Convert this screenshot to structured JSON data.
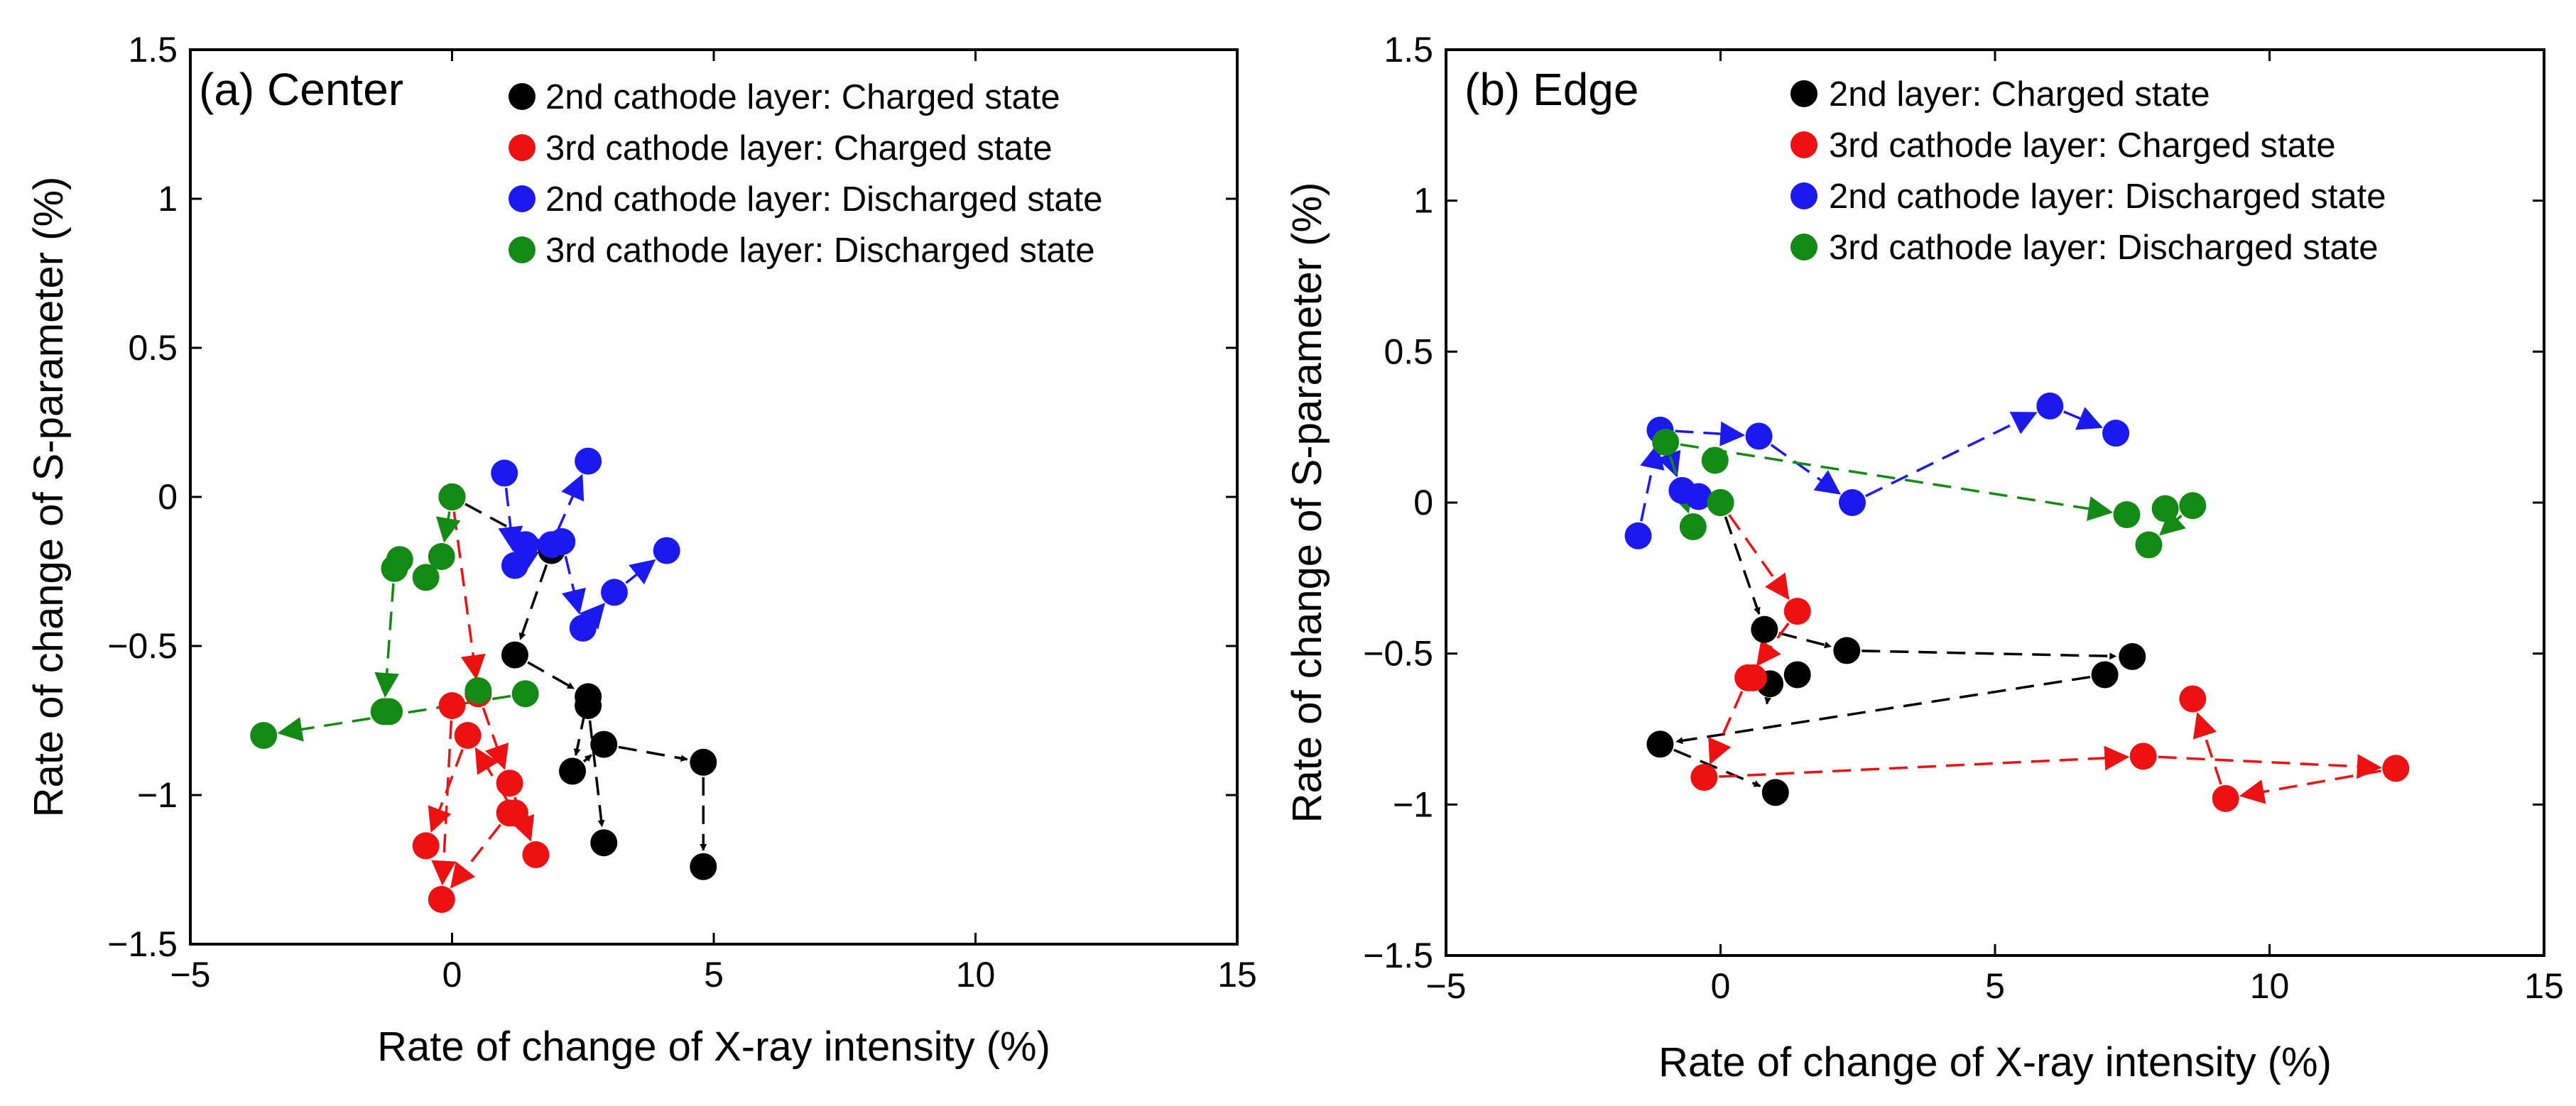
{
  "colors": {
    "black": "#000000",
    "red": "#ee1111",
    "blue": "#1a1aee",
    "green": "#138a13"
  },
  "chart_data": [
    {
      "type": "scatter",
      "title": "(a) Center",
      "xlabel": "Rate of change of X-ray intensity (%)",
      "ylabel": "Rate of change of S-parameter (%)",
      "xlim": [
        -5,
        15
      ],
      "ylim": [
        -1.5,
        1.5
      ],
      "xticks": [
        "−5",
        "0",
        "5",
        "10",
        "15"
      ],
      "yticks": [
        "1.5",
        "1",
        "0.5",
        "0",
        "−0.5",
        "−1",
        "−1.5"
      ],
      "legend_position": "top-right",
      "series": [
        {
          "name": "2nd cathode layer: Charged state",
          "color": "black",
          "x": [
            0,
            1.9,
            1.2,
            2.6,
            2.3,
            2.9,
            4.8,
            4.8,
            2.6,
            2.9
          ],
          "y": [
            0,
            -0.18,
            -0.53,
            -0.67,
            -0.92,
            -0.83,
            -0.89,
            -1.24,
            -0.7,
            -1.16
          ]
        },
        {
          "name": "3rd cathode layer: Charged state",
          "color": "red",
          "x": [
            0,
            0.5,
            1.1,
            1.6,
            1.2,
            0.3,
            -0.5,
            0,
            -0.2,
            1.1
          ],
          "y": [
            0,
            -0.66,
            -0.96,
            -1.2,
            -1.06,
            -0.8,
            -1.17,
            -0.7,
            -1.35,
            -1.06
          ]
        },
        {
          "name": "2nd cathode layer: Discharged state",
          "color": "blue",
          "x": [
            1,
            1.2,
            1.9,
            2.6,
            1.4,
            2.1,
            2.5,
            3.1,
            4.1
          ],
          "y": [
            0.08,
            -0.23,
            -0.16,
            0.12,
            -0.16,
            -0.15,
            -0.44,
            -0.32,
            -0.18
          ]
        },
        {
          "name": "3rd cathode layer: Discharged state",
          "color": "green",
          "x": [
            0,
            -0.2,
            -0.5,
            -1,
            -1.1,
            -1.3,
            -3.6,
            0.5,
            1.4,
            -1.2
          ],
          "y": [
            0,
            -0.2,
            -0.27,
            -0.21,
            -0.24,
            -0.72,
            -0.8,
            -0.65,
            -0.66,
            -0.72
          ]
        }
      ],
      "arrows": [
        {
          "color": "black",
          "path": [
            [
              0,
              0
            ],
            [
              1.9,
              -0.18
            ],
            [
              1.2,
              -0.53
            ],
            [
              2.6,
              -0.67
            ],
            [
              2.3,
              -0.92
            ],
            [
              2.9,
              -0.83
            ],
            [
              4.8,
              -0.89
            ],
            [
              4.8,
              -1.24
            ]
          ]
        },
        {
          "color": "black",
          "path": [
            [
              2.6,
              -0.7
            ],
            [
              2.9,
              -1.16
            ]
          ]
        },
        {
          "color": "red",
          "path": [
            [
              0,
              0
            ],
            [
              0.5,
              -0.66
            ],
            [
              1.1,
              -0.96
            ],
            [
              1.6,
              -1.2
            ]
          ]
        },
        {
          "color": "red",
          "path": [
            [
              1.2,
              -1.06
            ],
            [
              0.3,
              -0.8
            ],
            [
              -0.5,
              -1.17
            ]
          ]
        },
        {
          "color": "red",
          "path": [
            [
              0,
              -0.7
            ],
            [
              -0.2,
              -1.35
            ]
          ]
        },
        {
          "color": "red",
          "path": [
            [
              1.1,
              -1.06
            ],
            [
              -0.2,
              -1.35
            ]
          ]
        },
        {
          "color": "blue",
          "path": [
            [
              1,
              0.08
            ],
            [
              1.2,
              -0.23
            ],
            [
              1.9,
              -0.16
            ],
            [
              2.6,
              0.12
            ]
          ]
        },
        {
          "color": "blue",
          "path": [
            [
              1.4,
              -0.16
            ],
            [
              2.1,
              -0.15
            ],
            [
              2.5,
              -0.44
            ],
            [
              3.1,
              -0.32
            ],
            [
              4.1,
              -0.18
            ]
          ]
        },
        {
          "color": "green",
          "path": [
            [
              0,
              0
            ],
            [
              -0.2,
              -0.2
            ],
            [
              -0.5,
              -0.27
            ]
          ]
        },
        {
          "color": "green",
          "path": [
            [
              -1.1,
              -0.24
            ],
            [
              -1.3,
              -0.72
            ]
          ]
        },
        {
          "color": "green",
          "path": [
            [
              1.4,
              -0.66
            ],
            [
              -3.6,
              -0.8
            ]
          ]
        }
      ]
    },
    {
      "type": "scatter",
      "title": "(b) Edge",
      "xlabel": "Rate of change of X-ray intensity (%)",
      "ylabel": "Rate of change of S-parameter (%)",
      "xlim": [
        -5,
        15
      ],
      "ylim": [
        -1.5,
        1.5
      ],
      "xticks": [
        "−5",
        "0",
        "5",
        "10",
        "15"
      ],
      "yticks": [
        "1.5",
        "1",
        "0.5",
        "0",
        "−0.5",
        "−1",
        "−1.5"
      ],
      "legend_position": "top-right",
      "series": [
        {
          "name": "2nd layer: Charged state",
          "color": "black",
          "x": [
            0,
            0.8,
            1.4,
            2.3,
            7,
            7.5,
            0.9,
            -1.1,
            1
          ],
          "y": [
            0,
            -0.42,
            -0.57,
            -0.49,
            -0.57,
            -0.51,
            -0.6,
            -0.8,
            -0.96
          ]
        },
        {
          "name": "3rd cathode layer: Charged state",
          "color": "red",
          "x": [
            1.4,
            0.5,
            0.6,
            -0.3,
            7.7,
            12.3,
            9.2,
            8.6
          ],
          "y": [
            -0.36,
            -0.58,
            -0.58,
            -0.91,
            -0.84,
            -0.88,
            -0.98,
            -0.65
          ]
        },
        {
          "name": "2nd cathode layer: Discharged state",
          "color": "blue",
          "x": [
            -1.5,
            -1.1,
            -0.7,
            -0.4,
            0.7,
            2.4,
            6,
            7.2
          ],
          "y": [
            -0.11,
            0.24,
            0.04,
            0.02,
            0.22,
            0,
            0.32,
            0.23
          ]
        },
        {
          "name": "3rd cathode layer: Discharged state",
          "color": "green",
          "x": [
            -1,
            -0.5,
            -0.1,
            0,
            7.4,
            7.8,
            8.1,
            8.6
          ],
          "y": [
            0.2,
            -0.08,
            0.14,
            0,
            -0.04,
            -0.14,
            -0.02,
            -0.01
          ]
        }
      ],
      "arrows": [
        {
          "color": "black",
          "path": [
            [
              0,
              0
            ],
            [
              0.8,
              -0.42
            ],
            [
              2.3,
              -0.49
            ],
            [
              7.5,
              -0.51
            ]
          ]
        },
        {
          "color": "black",
          "path": [
            [
              7,
              -0.57
            ],
            [
              -1.1,
              -0.8
            ],
            [
              1,
              -0.96
            ]
          ]
        },
        {
          "color": "black",
          "path": [
            [
              0.9,
              -0.6
            ],
            [
              0.8,
              -0.72
            ]
          ]
        },
        {
          "color": "red",
          "path": [
            [
              0,
              0
            ],
            [
              1.4,
              -0.36
            ],
            [
              0.5,
              -0.58
            ],
            [
              -0.3,
              -0.91
            ],
            [
              7.7,
              -0.84
            ],
            [
              12.3,
              -0.88
            ],
            [
              9.2,
              -0.98
            ],
            [
              8.6,
              -0.65
            ]
          ]
        },
        {
          "color": "blue",
          "path": [
            [
              -1.5,
              -0.11
            ],
            [
              -1.1,
              0.24
            ],
            [
              0.7,
              0.22
            ],
            [
              2.4,
              0
            ],
            [
              6,
              0.32
            ],
            [
              7.2,
              0.23
            ]
          ]
        },
        {
          "color": "blue",
          "path": [
            [
              -1.1,
              0.24
            ],
            [
              -0.7,
              0.04
            ]
          ]
        },
        {
          "color": "green",
          "path": [
            [
              -1,
              0.2
            ],
            [
              -0.5,
              -0.08
            ]
          ]
        },
        {
          "color": "green",
          "path": [
            [
              -1,
              0.2
            ],
            [
              7.4,
              -0.04
            ]
          ]
        },
        {
          "color": "green",
          "path": [
            [
              8.6,
              -0.01
            ],
            [
              7.8,
              -0.14
            ]
          ]
        }
      ]
    }
  ]
}
